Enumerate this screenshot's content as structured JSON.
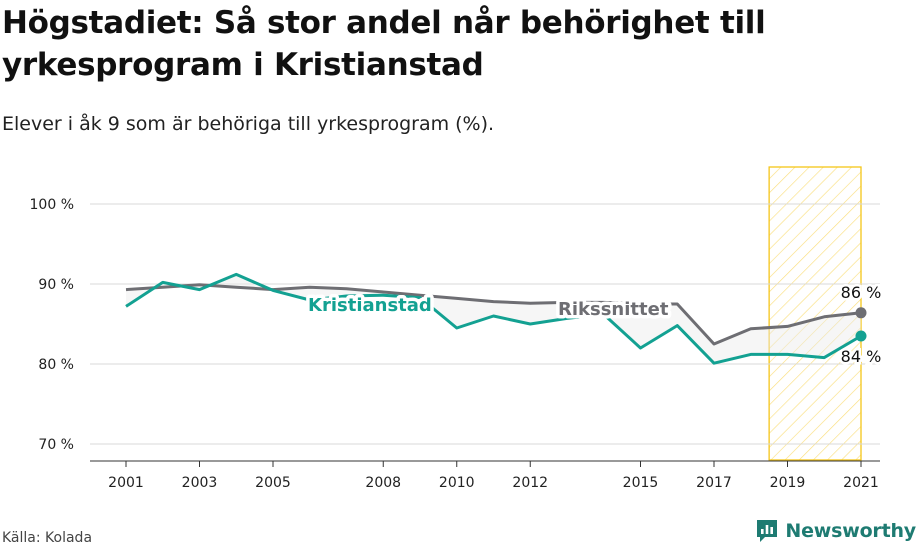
{
  "header": {
    "title": "Högstadiet: Så stor andel når behörighet till yrkesprogram i Kristianstad",
    "subtitle": "Elever i åk 9 som är behöriga till yrkesprogram (%)."
  },
  "footer": {
    "source": "Källa: Kolada",
    "brand": "Newsworthy",
    "brand_icon": "chart-bubble-icon"
  },
  "colors": {
    "kristianstad": "#13a192",
    "riket": "#6e6e73",
    "highlight": "#f5c518",
    "brand": "#1e7b72"
  },
  "chart_data": {
    "type": "line",
    "title": "Högstadiet: Så stor andel når behörighet till yrkesprogram i Kristianstad",
    "subtitle": "Elever i åk 9 som är behöriga till yrkesprogram (%).",
    "x_ticks": [
      2001,
      2003,
      2005,
      2008,
      2010,
      2012,
      2015,
      2017,
      2019,
      2021
    ],
    "y_ticks": [
      70,
      80,
      90,
      100
    ],
    "y_tick_labels": [
      "70 %",
      "80 %",
      "90 %",
      "100 %"
    ],
    "xlim": [
      2001,
      2021
    ],
    "ylim": [
      70,
      100
    ],
    "grid": "horizontal",
    "highlight_range": [
      2018.5,
      2021
    ],
    "series": [
      {
        "name": "Kristianstad",
        "x": [
          2001,
          2002,
          2003,
          2004,
          2005,
          2006,
          2007,
          2008,
          2009,
          2010,
          2011,
          2012,
          2013,
          2014,
          2015,
          2016,
          2017,
          2018,
          2019,
          2020,
          2021
        ],
        "values": [
          87.2,
          90.2,
          89.3,
          91.2,
          89.2,
          88.0,
          88.5,
          88.6,
          88.3,
          84.5,
          86.0,
          85.0,
          85.7,
          86.2,
          82.0,
          84.8,
          80.1,
          81.2,
          81.2,
          80.8,
          83.5
        ],
        "end_label": "84 %",
        "line_label": "Kristianstad"
      },
      {
        "name": "Rikssnittet",
        "x": [
          2001,
          2002,
          2003,
          2004,
          2005,
          2006,
          2007,
          2008,
          2009,
          2010,
          2011,
          2012,
          2013,
          2014,
          2015,
          2016,
          2017,
          2018,
          2019,
          2020,
          2021
        ],
        "values": [
          89.3,
          89.6,
          89.9,
          89.6,
          89.3,
          89.6,
          89.4,
          89.0,
          88.6,
          88.2,
          87.8,
          87.6,
          87.7,
          87.7,
          87.5,
          87.5,
          82.5,
          84.4,
          84.7,
          85.9,
          86.4
        ],
        "end_label": "86 %",
        "line_label": "Rikssnittet"
      }
    ]
  }
}
